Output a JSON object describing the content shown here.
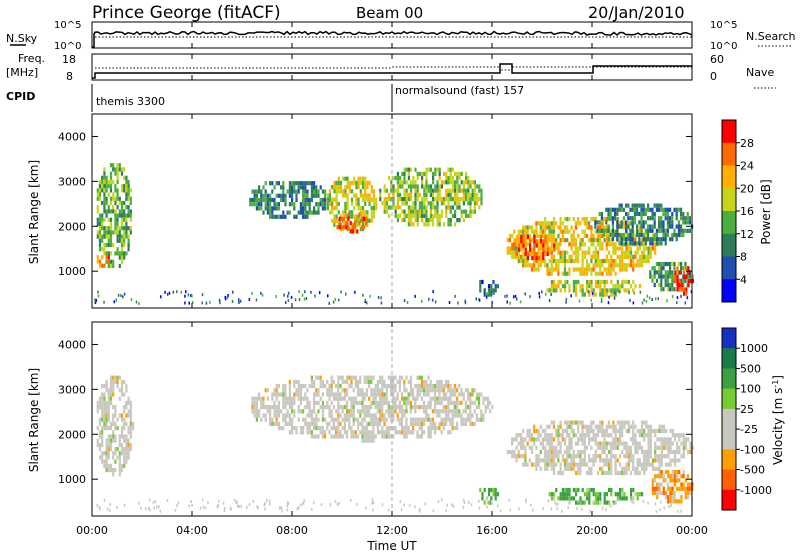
{
  "header": {
    "station": "Prince George (fitACF)",
    "beam": "Beam 00",
    "date": "20/Jan/2010"
  },
  "summary_panels": {
    "nsky_label": "N.Sky",
    "nsky_ticks": [
      "10^5",
      "10^0"
    ],
    "nsearch_label": "N.Search",
    "freq_label": "Freq.",
    "freq_unit": "[MHz]",
    "freq_ticks": [
      "18",
      "8"
    ],
    "nave_ticks": [
      "60",
      "0"
    ],
    "nave_label": "Nave",
    "cpid_label": "CPID",
    "cpid_segments": [
      {
        "label": "themis 3300",
        "start_hour": 0
      },
      {
        "label": "normalsound (fast) 157",
        "start_hour": 12
      }
    ]
  },
  "chart_data": [
    {
      "type": "heatmap",
      "title": "Power",
      "ylabel": "Slant Range [km]",
      "xlabel": "",
      "x_range_hours": [
        0,
        24
      ],
      "ylim": [
        180,
        4500
      ],
      "yticks": [
        "1000",
        "2000",
        "3000",
        "4000"
      ],
      "colorbar": {
        "label": "Power [dB]",
        "ticks": [
          "4",
          "8",
          "12",
          "16",
          "20",
          "24",
          "28"
        ],
        "colors": [
          "#0000ff",
          "#1f4fb0",
          "#2e7d5a",
          "#4cae3c",
          "#c6d41a",
          "#ffb000",
          "#ff6a00",
          "#ff0000"
        ]
      },
      "echo_regions": [
        {
          "t0": 0.1,
          "t1": 1.6,
          "r0": 1100,
          "r1": 3500,
          "level_db": 14
        },
        {
          "t0": 0.1,
          "t1": 0.7,
          "r0": 1150,
          "r1": 1450,
          "level_db": 24
        },
        {
          "t0": 6.2,
          "t1": 9.5,
          "r0": 2200,
          "r1": 3100,
          "level_db": 10
        },
        {
          "t0": 9.3,
          "t1": 11.4,
          "r0": 1900,
          "r1": 3200,
          "level_db": 18
        },
        {
          "t0": 9.6,
          "t1": 11.0,
          "r0": 1900,
          "r1": 2400,
          "level_db": 27
        },
        {
          "t0": 11.4,
          "t1": 15.6,
          "r0": 2000,
          "r1": 3400,
          "level_db": 16
        },
        {
          "t0": 15.4,
          "t1": 16.2,
          "r0": 500,
          "r1": 900,
          "level_db": 8
        },
        {
          "t0": 16.5,
          "t1": 22.6,
          "r0": 900,
          "r1": 2300,
          "level_db": 20
        },
        {
          "t0": 16.6,
          "t1": 18.5,
          "r0": 1300,
          "r1": 1900,
          "level_db": 26
        },
        {
          "t0": 18.0,
          "t1": 22.0,
          "r0": 500,
          "r1": 900,
          "level_db": 18
        },
        {
          "t0": 20.0,
          "t1": 24.0,
          "r0": 1600,
          "r1": 2600,
          "level_db": 10
        },
        {
          "t0": 22.2,
          "t1": 24.0,
          "r0": 600,
          "r1": 1300,
          "level_db": 12
        },
        {
          "t0": 23.2,
          "t1": 24.0,
          "r0": 500,
          "r1": 1200,
          "level_db": 28
        }
      ]
    },
    {
      "type": "heatmap",
      "title": "Velocity",
      "ylabel": "Slant Range [km]",
      "xlabel": "Time UT",
      "x_range_hours": [
        0,
        24
      ],
      "ylim": [
        180,
        4500
      ],
      "yticks": [
        "1000",
        "2000",
        "3000",
        "4000"
      ],
      "xticks": [
        "00:00",
        "04:00",
        "08:00",
        "12:00",
        "16:00",
        "20:00",
        "00:00"
      ],
      "colorbar": {
        "label": "Velocity [m s^-1]",
        "ticks": [
          "1000",
          "500",
          "100",
          "25",
          "-25",
          "-100",
          "-500",
          "-1000"
        ],
        "colors": [
          "#1830c0",
          "#1a7a4a",
          "#3aa040",
          "#77cc33",
          "#c8c8c0",
          "#c8c8c0",
          "#ffa000",
          "#ff6000",
          "#ff0000"
        ]
      },
      "echo_regions": [
        {
          "t0": 0.1,
          "t1": 1.6,
          "r0": 1100,
          "r1": 3400,
          "class": "gray"
        },
        {
          "t0": 6.2,
          "t1": 16.0,
          "r0": 1900,
          "r1": 3400,
          "class": "gray"
        },
        {
          "t0": 16.5,
          "t1": 24.0,
          "r0": 1100,
          "r1": 2400,
          "class": "gray"
        },
        {
          "t0": 15.4,
          "t1": 16.2,
          "r0": 500,
          "r1": 900,
          "class": "green"
        },
        {
          "t0": 18.0,
          "t1": 22.0,
          "r0": 500,
          "r1": 900,
          "class": "green"
        },
        {
          "t0": 22.3,
          "t1": 24.0,
          "r0": 500,
          "r1": 1300,
          "class": "orange"
        }
      ]
    }
  ]
}
